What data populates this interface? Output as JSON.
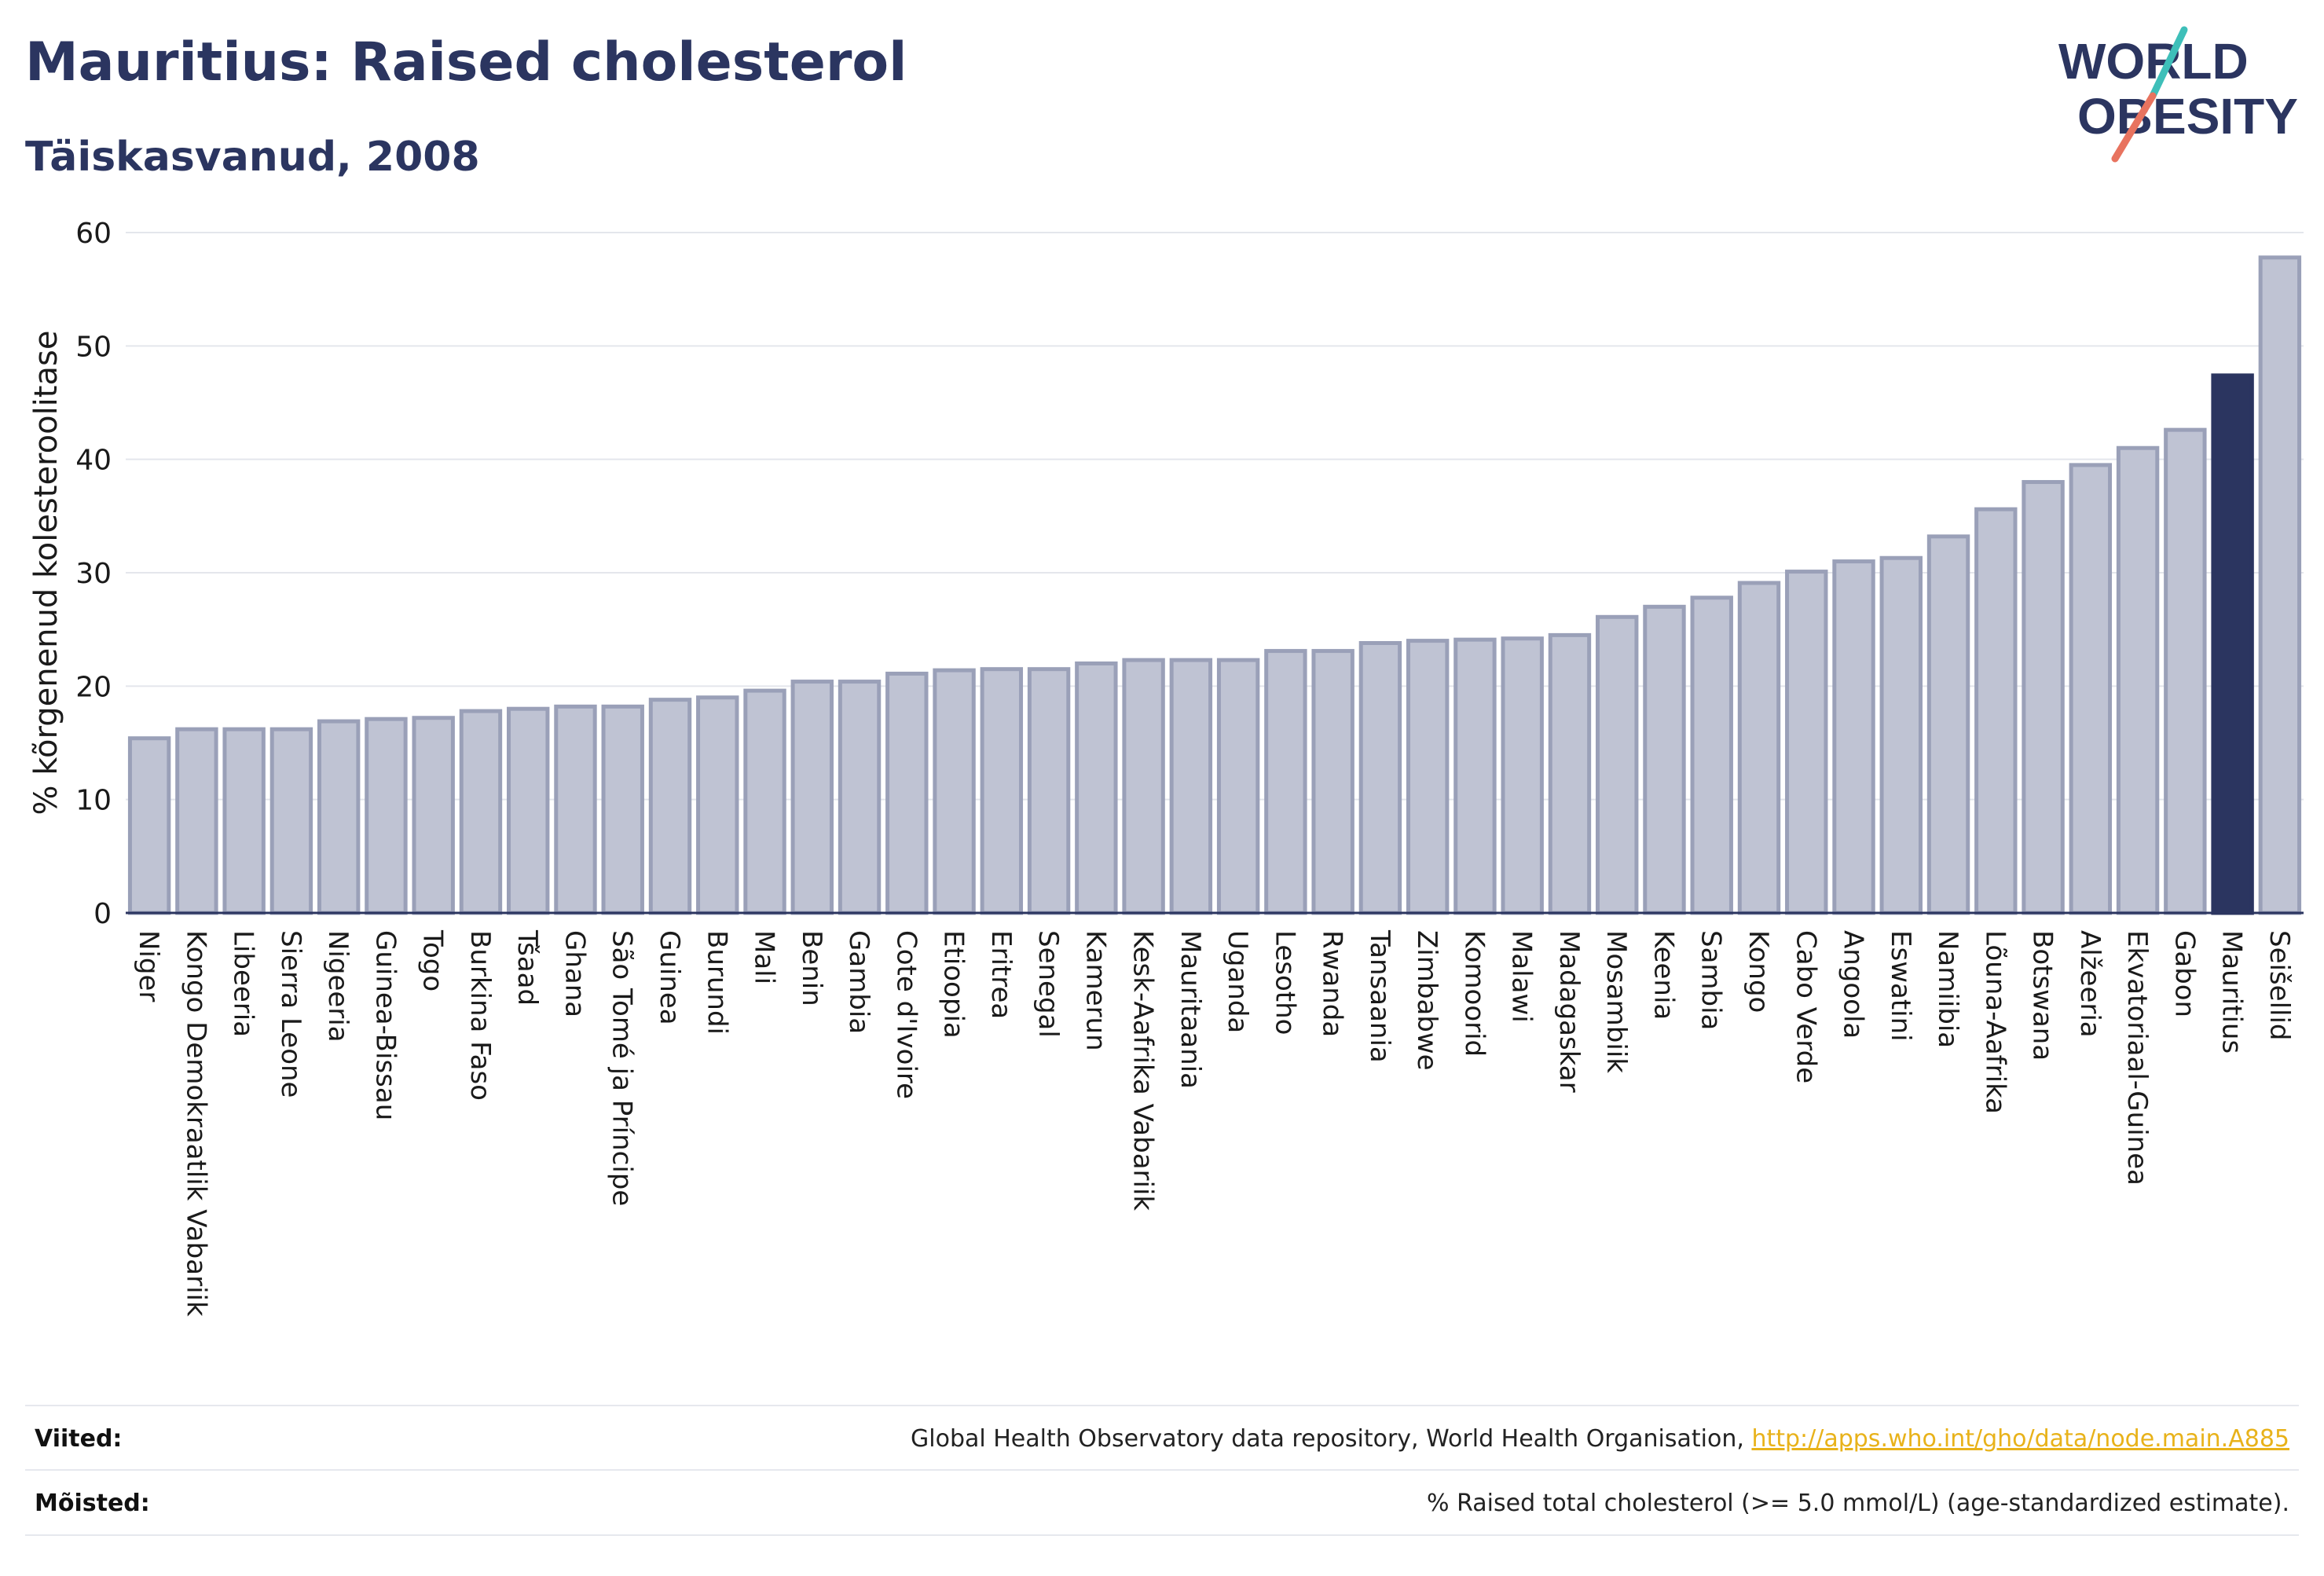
{
  "header": {
    "title": "Mauritius: Raised cholesterol",
    "subtitle": "Täiskasvanud, 2008"
  },
  "logo": {
    "line1": "WORLD",
    "line2": "OBESITY"
  },
  "chart_data": {
    "type": "bar",
    "ylabel": "% kõrgenenud kolesteroolitase",
    "ylim": [
      0,
      60
    ],
    "yticks": [
      0,
      10,
      20,
      30,
      40,
      50,
      60
    ],
    "grid": true,
    "highlight": "Mauritius",
    "categories": [
      "Niger",
      "Kongo Demokraatlik Vabariik",
      "Libeeria",
      "Sierra Leone",
      "Nigeeria",
      "Guinea-Bissau",
      "Togo",
      "Burkina Faso",
      "Tšaad",
      "Ghana",
      "São Tomé ja Príncipe",
      "Guinea",
      "Burundi",
      "Mali",
      "Benin",
      "Gambia",
      "Cote d'Ivoire",
      "Etioopia",
      "Eritrea",
      "Senegal",
      "Kamerun",
      "Kesk-Aafrika Vabariik",
      "Mauritaania",
      "Uganda",
      "Lesotho",
      "Rwanda",
      "Tansaania",
      "Zimbabwe",
      "Komoorid",
      "Malawi",
      "Madagaskar",
      "Mosambiik",
      "Keenia",
      "Sambia",
      "Kongo",
      "Cabo Verde",
      "Angoola",
      "Eswatini",
      "Namiibia",
      "Lõuna-Aafrika",
      "Botswana",
      "Alžeeria",
      "Ekvatoriaal-Guinea",
      "Gabon",
      "Mauritius",
      "Seišellid"
    ],
    "values": [
      15.4,
      16.2,
      16.2,
      16.2,
      16.9,
      17.1,
      17.2,
      17.8,
      18.0,
      18.2,
      18.2,
      18.8,
      19.0,
      19.6,
      20.4,
      20.4,
      21.1,
      21.4,
      21.5,
      21.5,
      22.0,
      22.3,
      22.3,
      22.3,
      23.1,
      23.1,
      23.8,
      24.0,
      24.1,
      24.2,
      24.5,
      26.1,
      27.0,
      27.8,
      29.1,
      30.1,
      31.0,
      31.3,
      33.2,
      35.6,
      38.0,
      39.5,
      41.0,
      42.6,
      47.4,
      57.8
    ],
    "colors": {
      "bar": "#bfc3d3",
      "bar_stroke": "#9aa0b8",
      "highlight": "#2b3560",
      "grid": "#e4e6ec",
      "axis": "#2b3560"
    }
  },
  "footer": {
    "sources_label": "Viited:",
    "sources_text": "Global Health Observatory data repository, World Health Organisation, ",
    "sources_link": "http://apps.who.int/gho/data/node.main.A885",
    "definitions_label": "Mõisted:",
    "definitions_text": "% Raised total cholesterol (>= 5.0 mmol/L) (age-standardized estimate)."
  }
}
